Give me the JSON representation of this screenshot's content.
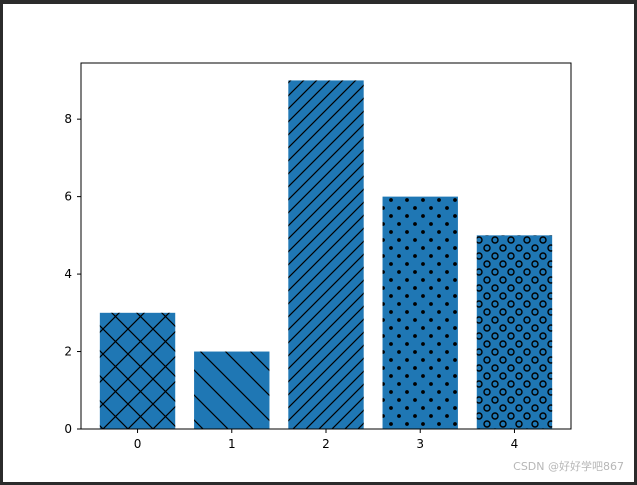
{
  "chart_data": {
    "type": "bar",
    "categories": [
      "0",
      "1",
      "2",
      "3",
      "4"
    ],
    "values": [
      3,
      2,
      9,
      6,
      5
    ],
    "hatches": [
      "x",
      "\\",
      "/",
      ".",
      "o"
    ],
    "bar_color": "#1f77b4",
    "hatch_color": "#000000",
    "title": "",
    "xlabel": "",
    "ylabel": "",
    "ylim": [
      0,
      9.45
    ],
    "yticks": [
      0,
      2,
      4,
      6,
      8
    ],
    "xtick_labels": [
      "0",
      "1",
      "2",
      "3",
      "4"
    ],
    "ytick_labels": [
      "0",
      "2",
      "4",
      "6",
      "8"
    ],
    "grid": false,
    "legend": "none"
  },
  "watermark": "CSDN @好好学吧867"
}
